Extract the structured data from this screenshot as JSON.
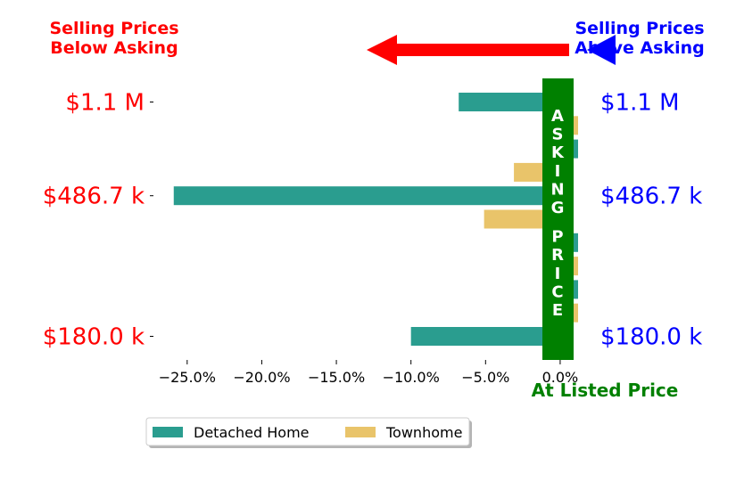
{
  "chart_data": {
    "type": "bar",
    "orientation": "horizontal",
    "x_unit": "percent",
    "xlim": [
      -27.5,
      1.2
    ],
    "x_ticks": [
      -25,
      -20,
      -15,
      -10,
      -5,
      0
    ],
    "x_tick_labels": [
      "−25.0%",
      "−20.0%",
      "−15.0%",
      "−10.0%",
      "−5.0%",
      "0.0%"
    ],
    "rows": [
      {
        "price": "$1.1 M",
        "series": "Detached Home",
        "value": -6.8
      },
      {
        "price": "",
        "series": "Townhome",
        "value": 1.2
      },
      {
        "price": "",
        "series": "Detached Home",
        "value": 1.2
      },
      {
        "price": "",
        "series": "Townhome",
        "value": -3.1
      },
      {
        "price": "$486.7 k",
        "series": "Detached Home",
        "value": -25.9
      },
      {
        "price": "",
        "series": "Townhome",
        "value": -5.1
      },
      {
        "price": "",
        "series": "Detached Home",
        "value": 1.2
      },
      {
        "price": "",
        "series": "Townhome",
        "value": 1.2
      },
      {
        "price": "",
        "series": "Detached Home",
        "value": 1.2
      },
      {
        "price": "",
        "series": "Townhome",
        "value": 1.2
      },
      {
        "price": "$180.0 k",
        "series": "Detached Home",
        "value": -10.0
      }
    ],
    "price_tick_labels": [
      "$1.1 M",
      "$486.7 k",
      "$180.0 k"
    ],
    "series": [
      {
        "name": "Detached Home",
        "color": "#2a9d8f"
      },
      {
        "name": "Townhome",
        "color": "#e9c46a"
      }
    ],
    "legend_placement": "bottom-center",
    "grid": false
  },
  "annotations": {
    "below_asking": "Selling Prices\nBelow Asking",
    "above_asking": "Selling Prices\nAbove Asking",
    "asking_price_bar": "ASKING PRICE",
    "at_listed_price": "At Listed Price"
  },
  "colors": {
    "below": "#ff0000",
    "above": "#0000ff",
    "asking": "#008000",
    "arrow_left": "#ff0000",
    "arrow_right": "#0000ff"
  }
}
